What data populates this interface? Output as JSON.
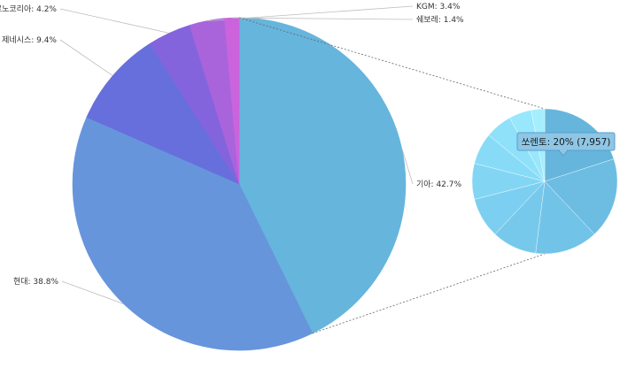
{
  "chart_data": {
    "type": "pie",
    "main": {
      "slices": [
        {
          "label": "기아",
          "value": 42.7,
          "display": "기아: 42.7%",
          "color": "#66b5dc"
        },
        {
          "label": "현대",
          "value": 38.8,
          "display": "현대: 38.8%",
          "color": "#6795dc"
        },
        {
          "label": "제네시스",
          "value": 9.4,
          "display": "제네시스: 9.4%",
          "color": "#676fdc"
        },
        {
          "label": "르노코리아",
          "value": 4.2,
          "display": "르노코리아: 4.2%",
          "color": "#8464dc"
        },
        {
          "label": "KGM",
          "value": 3.4,
          "display": "KGM: 3.4%",
          "color": "#a964dc"
        },
        {
          "label": "쉐보레",
          "value": 1.4,
          "display": "쉐보레: 1.4%",
          "color": "#cb64dc"
        }
      ],
      "exploded_slice": "기아"
    },
    "sub": {
      "parent": "기아",
      "slices": [
        {
          "value": 20,
          "color": "#66b5dc"
        },
        {
          "value": 18,
          "color": "#6dbde3"
        },
        {
          "value": 14,
          "color": "#72c3e8"
        },
        {
          "value": 10,
          "color": "#77c9ec"
        },
        {
          "value": 9,
          "color": "#7ccff0"
        },
        {
          "value": 8,
          "color": "#82d6f4"
        },
        {
          "value": 7,
          "color": "#88dbf7"
        },
        {
          "value": 6,
          "color": "#8fe1fa"
        },
        {
          "value": 5,
          "color": "#98e7fc"
        },
        {
          "value": 3,
          "color": "#a4eefe"
        }
      ],
      "tooltip": "쏘렌토: 20% (7,957)"
    }
  }
}
